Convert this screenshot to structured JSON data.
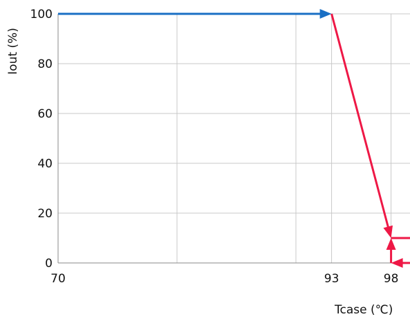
{
  "chart_data": {
    "type": "line",
    "title": "",
    "xlabel": "Tcase (℃)",
    "ylabel": "Iout (%)",
    "xlim": [
      70,
      100
    ],
    "ylim": [
      0,
      100
    ],
    "x_ticks": [
      70,
      93,
      98
    ],
    "x_tick_labels": [
      "70",
      "93",
      "98"
    ],
    "x_gridlines": [
      70,
      80,
      90,
      93,
      98
    ],
    "y_ticks": [
      0,
      20,
      40,
      60,
      80,
      100
    ],
    "y_tick_labels": [
      "0",
      "20",
      "40",
      "60",
      "80",
      "100"
    ],
    "grid": true,
    "legend": "none",
    "series": [
      {
        "color": "#1a6fc4",
        "x": [
          70,
          93
        ],
        "y": [
          100,
          100
        ]
      },
      {
        "color": "#ee1846",
        "x": [
          93,
          98
        ],
        "y": [
          100,
          10
        ]
      },
      {
        "color": "#ee1846",
        "x": [
          98,
          100
        ],
        "y": [
          10,
          10
        ]
      },
      {
        "color": "#ee1846",
        "x": [
          100,
          98
        ],
        "y": [
          0,
          0
        ]
      },
      {
        "color": "#ee1846",
        "x": [
          98,
          98
        ],
        "y": [
          0,
          10
        ]
      }
    ]
  }
}
